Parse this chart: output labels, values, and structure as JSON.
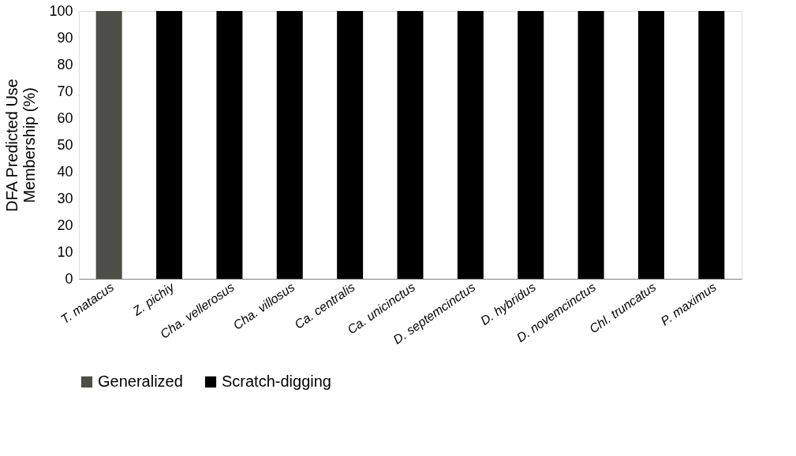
{
  "chart_data": {
    "type": "bar",
    "stacked": true,
    "ylabel": "DFA Predicted Use\nMembership (%)",
    "categories": [
      "T. matacus",
      "Z. pichiy",
      "Cha. vellerosus",
      "Cha. villosus",
      "Ca. centralis",
      "Ca. unicinctus",
      "D. septemcinctus",
      "D. hybridus",
      "D. novemcinctus",
      "Chl. truncatus",
      "P. maximus"
    ],
    "series": [
      {
        "name": "Generalized",
        "color": "#4d4e46",
        "values": [
          100,
          0,
          0,
          0,
          0,
          0,
          0,
          0,
          0,
          0,
          0
        ]
      },
      {
        "name": "Scratch-digging",
        "color": "#000000",
        "values": [
          0,
          100,
          100,
          100,
          100,
          100,
          100,
          100,
          100,
          100,
          100
        ]
      }
    ],
    "ylim": [
      0,
      100
    ],
    "yticks": [
      0,
      10,
      20,
      30,
      40,
      50,
      60,
      70,
      80,
      90,
      100
    ],
    "grid": false,
    "legend": "bottom"
  }
}
